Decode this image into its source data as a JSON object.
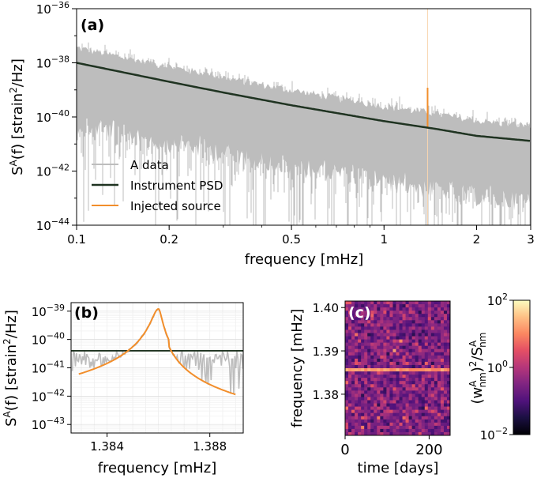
{
  "chart_data": [
    {
      "panel": "(a)",
      "type": "line",
      "xlabel": "frequency [mHz]",
      "ylabel_main": "S",
      "ylabel_sup": "A",
      "ylabel_mid": "(f) [strain",
      "ylabel_sup2": "2",
      "ylabel_end": "/Hz]",
      "xscale": "log",
      "yscale": "log",
      "xlim": [
        0.1,
        3
      ],
      "ylim": [
        1e-44,
        1e-36
      ],
      "x_ticks": [
        0.1,
        0.2,
        0.5,
        1,
        2,
        3
      ],
      "x_tick_labels": [
        "0.1",
        "0.2",
        "0.5",
        "1",
        "2",
        "3"
      ],
      "y_ticks": [
        1e-44,
        1e-42,
        1e-40,
        1e-38,
        1e-36
      ],
      "y_tick_base": "10",
      "y_tick_exps": [
        "−44",
        "−42",
        "−40",
        "−38",
        "−36"
      ],
      "legend_position": "lower-left",
      "colors": {
        "data": "#bdbdbd",
        "psd": "#1f3321",
        "source": "#f28e2b"
      },
      "series": [
        {
          "name": "A data",
          "description": "noisy periodogram scattered around the PSD, spanning roughly 1e-44 to 1e-37"
        },
        {
          "name": "Instrument PSD",
          "x": [
            0.1,
            0.2,
            0.3,
            0.5,
            0.7,
            1.0,
            1.5,
            2.0,
            3.0
          ],
          "y": [
            1e-38,
            2e-39,
            8e-40,
            2.7e-40,
            1.4e-40,
            7e-41,
            3.5e-41,
            2e-41,
            1.3e-41
          ]
        },
        {
          "name": "Injected source",
          "x": [
            1.386
          ],
          "y": [
            1.2e-39
          ]
        }
      ]
    },
    {
      "panel": "(b)",
      "type": "line",
      "xlabel": "frequency [mHz]",
      "ylabel_main": "S",
      "ylabel_sup": "A",
      "ylabel_mid": "(f) [strain",
      "ylabel_sup2": "2",
      "ylabel_end": "/Hz]",
      "yscale": "log",
      "xlim": [
        1.3826,
        1.3893
      ],
      "ylim": [
        5e-44,
        2e-39
      ],
      "x_tick_labels": [
        "1.384",
        "1.388"
      ],
      "x_ticks": [
        1.384,
        1.388
      ],
      "y_ticks": [
        1e-43,
        1e-42,
        1e-41,
        1e-40,
        1e-39
      ],
      "y_tick_base": "10",
      "y_tick_exps": [
        "−43",
        "−42",
        "−41",
        "−40",
        "−39"
      ],
      "psd_level": 4e-41,
      "source_peak": {
        "x": 1.386,
        "y": 1.2e-39
      }
    },
    {
      "panel": "(c)",
      "type": "heatmap",
      "xlabel": "time [days]",
      "ylabel": "frequency [mHz]",
      "xlim": [
        0,
        250
      ],
      "ylim": [
        1.3705,
        1.4015
      ],
      "x_ticks": [
        0,
        200
      ],
      "x_tick_labels": [
        "0",
        "200"
      ],
      "y_ticks": [
        1.38,
        1.39,
        1.4
      ],
      "y_tick_labels": [
        "1.38",
        "1.39",
        "1.40"
      ],
      "highlight_row_frequency": 1.386,
      "colorbar": {
        "scale": "log",
        "range": [
          0.01,
          100.0
        ],
        "tick_base": "10",
        "tick_exps": [
          "−2",
          "0",
          "2"
        ],
        "label_main": "(w",
        "label_sup": "A",
        "label_sub": "nm",
        "label_mid": ")",
        "label_sup2": "2",
        "label_slash": "/S",
        "label_sup3": "A",
        "label_sub2": "nm"
      }
    }
  ]
}
